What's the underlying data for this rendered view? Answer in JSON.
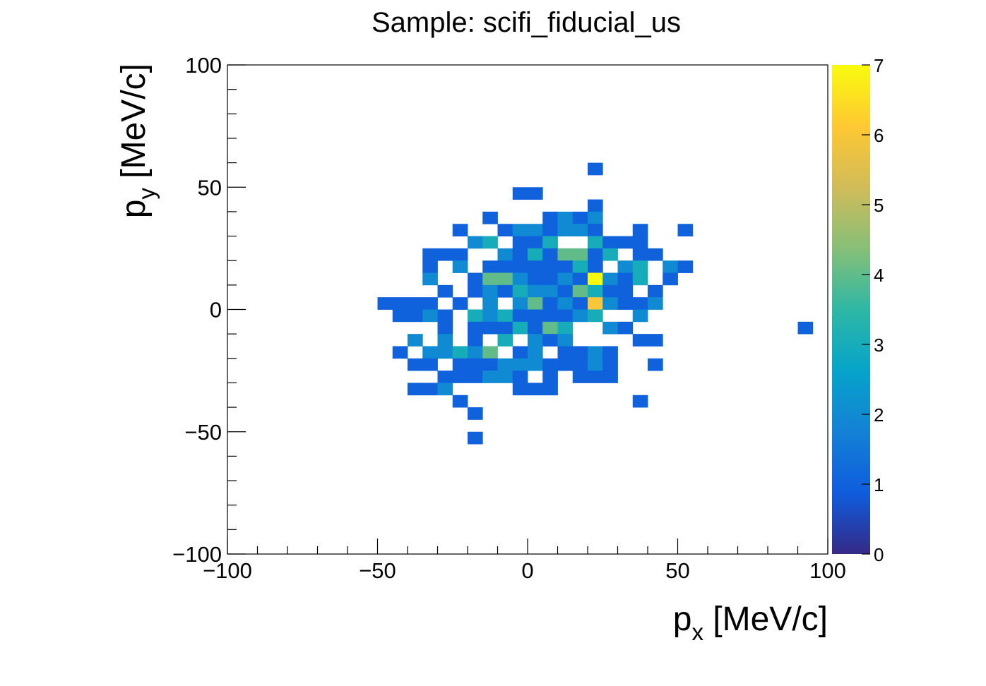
{
  "chart_data": {
    "type": "heatmap",
    "title": "Sample: scifi_fiducial_us",
    "xlabel_main": "p",
    "xlabel_sub": "x",
    "xlabel_unit": " [MeV/c]",
    "ylabel_main": "p",
    "ylabel_sub": "y",
    "ylabel_unit": " [MeV/c]",
    "xlim": [
      -100,
      100
    ],
    "ylim": [
      -100,
      100
    ],
    "bin_width": 5,
    "z_range": [
      0,
      7
    ],
    "x_ticks": [
      {
        "value": -100,
        "label": "−100"
      },
      {
        "value": -50,
        "label": "−50"
      },
      {
        "value": 0,
        "label": "0"
      },
      {
        "value": 50,
        "label": "50"
      },
      {
        "value": 100,
        "label": "100"
      }
    ],
    "y_ticks": [
      {
        "value": -100,
        "label": "−100"
      },
      {
        "value": -50,
        "label": "−50"
      },
      {
        "value": 0,
        "label": "0"
      },
      {
        "value": 50,
        "label": "50"
      },
      {
        "value": 100,
        "label": "100"
      }
    ],
    "z_ticks": [
      "0",
      "1",
      "2",
      "3",
      "4",
      "5",
      "6",
      "7"
    ],
    "colormap": [
      "#352a87",
      "#0f5cdd",
      "#1481d6",
      "#06a4ca",
      "#2eb7a4",
      "#87bf77",
      "#d1bb59",
      "#fec832",
      "#f9fb0e"
    ],
    "bins": [
      {
        "x": 22.5,
        "y": 57.5,
        "z": 1
      },
      {
        "x": -2.5,
        "y": 47.5,
        "z": 1
      },
      {
        "x": 2.5,
        "y": 47.5,
        "z": 1
      },
      {
        "x": 22.5,
        "y": 42.5,
        "z": 1
      },
      {
        "x": -12.5,
        "y": 37.5,
        "z": 1
      },
      {
        "x": 7.5,
        "y": 37.5,
        "z": 1
      },
      {
        "x": 12.5,
        "y": 37.5,
        "z": 2
      },
      {
        "x": 17.5,
        "y": 37.5,
        "z": 1
      },
      {
        "x": 22.5,
        "y": 37.5,
        "z": 2
      },
      {
        "x": -22.5,
        "y": 32.5,
        "z": 1
      },
      {
        "x": -7.5,
        "y": 32.5,
        "z": 1
      },
      {
        "x": -2.5,
        "y": 32.5,
        "z": 2
      },
      {
        "x": 2.5,
        "y": 32.5,
        "z": 2
      },
      {
        "x": 7.5,
        "y": 32.5,
        "z": 1
      },
      {
        "x": 12.5,
        "y": 32.5,
        "z": 2
      },
      {
        "x": 17.5,
        "y": 32.5,
        "z": 2
      },
      {
        "x": 22.5,
        "y": 32.5,
        "z": 1
      },
      {
        "x": 37.5,
        "y": 32.5,
        "z": 1
      },
      {
        "x": 52.5,
        "y": 32.5,
        "z": 1
      },
      {
        "x": -17.5,
        "y": 27.5,
        "z": 2
      },
      {
        "x": -12.5,
        "y": 27.5,
        "z": 3
      },
      {
        "x": -2.5,
        "y": 27.5,
        "z": 1
      },
      {
        "x": 2.5,
        "y": 27.5,
        "z": 1
      },
      {
        "x": 7.5,
        "y": 27.5,
        "z": 3
      },
      {
        "x": 22.5,
        "y": 27.5,
        "z": 3
      },
      {
        "x": 27.5,
        "y": 27.5,
        "z": 1
      },
      {
        "x": 32.5,
        "y": 27.5,
        "z": 1
      },
      {
        "x": 37.5,
        "y": 27.5,
        "z": 1
      },
      {
        "x": -32.5,
        "y": 22.5,
        "z": 1
      },
      {
        "x": -27.5,
        "y": 22.5,
        "z": 1
      },
      {
        "x": -22.5,
        "y": 22.5,
        "z": 1
      },
      {
        "x": -7.5,
        "y": 22.5,
        "z": 2
      },
      {
        "x": -2.5,
        "y": 22.5,
        "z": 1
      },
      {
        "x": 2.5,
        "y": 22.5,
        "z": 3
      },
      {
        "x": 7.5,
        "y": 22.5,
        "z": 1
      },
      {
        "x": 12.5,
        "y": 22.5,
        "z": 4
      },
      {
        "x": 17.5,
        "y": 22.5,
        "z": 4
      },
      {
        "x": 22.5,
        "y": 22.5,
        "z": 1
      },
      {
        "x": 27.5,
        "y": 22.5,
        "z": 3
      },
      {
        "x": 37.5,
        "y": 22.5,
        "z": 1
      },
      {
        "x": 42.5,
        "y": 22.5,
        "z": 1
      },
      {
        "x": -32.5,
        "y": 17.5,
        "z": 1
      },
      {
        "x": -22.5,
        "y": 17.5,
        "z": 2
      },
      {
        "x": -12.5,
        "y": 17.5,
        "z": 1
      },
      {
        "x": -7.5,
        "y": 17.5,
        "z": 1
      },
      {
        "x": -2.5,
        "y": 17.5,
        "z": 1
      },
      {
        "x": 2.5,
        "y": 17.5,
        "z": 1
      },
      {
        "x": 7.5,
        "y": 17.5,
        "z": 1
      },
      {
        "x": 12.5,
        "y": 17.5,
        "z": 1
      },
      {
        "x": 17.5,
        "y": 17.5,
        "z": 3
      },
      {
        "x": 22.5,
        "y": 17.5,
        "z": 1
      },
      {
        "x": 32.5,
        "y": 17.5,
        "z": 2
      },
      {
        "x": 37.5,
        "y": 17.5,
        "z": 3
      },
      {
        "x": 47.5,
        "y": 17.5,
        "z": 2
      },
      {
        "x": 52.5,
        "y": 17.5,
        "z": 1
      },
      {
        "x": -32.5,
        "y": 12.5,
        "z": 2
      },
      {
        "x": -17.5,
        "y": 12.5,
        "z": 1
      },
      {
        "x": -12.5,
        "y": 12.5,
        "z": 4
      },
      {
        "x": -7.5,
        "y": 12.5,
        "z": 4
      },
      {
        "x": -2.5,
        "y": 12.5,
        "z": 2
      },
      {
        "x": 2.5,
        "y": 12.5,
        "z": 1
      },
      {
        "x": 7.5,
        "y": 12.5,
        "z": 1
      },
      {
        "x": 12.5,
        "y": 12.5,
        "z": 2
      },
      {
        "x": 17.5,
        "y": 12.5,
        "z": 1
      },
      {
        "x": 22.5,
        "y": 12.5,
        "z": 7
      },
      {
        "x": 27.5,
        "y": 12.5,
        "z": 2
      },
      {
        "x": 32.5,
        "y": 12.5,
        "z": 1
      },
      {
        "x": 37.5,
        "y": 12.5,
        "z": 3
      },
      {
        "x": 47.5,
        "y": 12.5,
        "z": 1
      },
      {
        "x": -27.5,
        "y": 7.5,
        "z": 1
      },
      {
        "x": -17.5,
        "y": 7.5,
        "z": 1
      },
      {
        "x": -12.5,
        "y": 7.5,
        "z": 2
      },
      {
        "x": -7.5,
        "y": 7.5,
        "z": 1
      },
      {
        "x": -2.5,
        "y": 7.5,
        "z": 3
      },
      {
        "x": 2.5,
        "y": 7.5,
        "z": 2
      },
      {
        "x": 7.5,
        "y": 7.5,
        "z": 2
      },
      {
        "x": 12.5,
        "y": 7.5,
        "z": 1
      },
      {
        "x": 17.5,
        "y": 7.5,
        "z": 4
      },
      {
        "x": 22.5,
        "y": 7.5,
        "z": 3
      },
      {
        "x": 27.5,
        "y": 7.5,
        "z": 1
      },
      {
        "x": 32.5,
        "y": 7.5,
        "z": 1
      },
      {
        "x": 42.5,
        "y": 7.5,
        "z": 1
      },
      {
        "x": -47.5,
        "y": 2.5,
        "z": 1
      },
      {
        "x": -42.5,
        "y": 2.5,
        "z": 1
      },
      {
        "x": -37.5,
        "y": 2.5,
        "z": 1
      },
      {
        "x": -32.5,
        "y": 2.5,
        "z": 1
      },
      {
        "x": -22.5,
        "y": 2.5,
        "z": 1
      },
      {
        "x": -12.5,
        "y": 2.5,
        "z": 2
      },
      {
        "x": -2.5,
        "y": 2.5,
        "z": 2
      },
      {
        "x": 2.5,
        "y": 2.5,
        "z": 4
      },
      {
        "x": 7.5,
        "y": 2.5,
        "z": 1
      },
      {
        "x": 12.5,
        "y": 2.5,
        "z": 2
      },
      {
        "x": 17.5,
        "y": 2.5,
        "z": 1
      },
      {
        "x": 22.5,
        "y": 2.5,
        "z": 6
      },
      {
        "x": 27.5,
        "y": 2.5,
        "z": 2
      },
      {
        "x": 32.5,
        "y": 2.5,
        "z": 1
      },
      {
        "x": 37.5,
        "y": 2.5,
        "z": 1
      },
      {
        "x": 42.5,
        "y": 2.5,
        "z": 2
      },
      {
        "x": -42.5,
        "y": -2.5,
        "z": 1
      },
      {
        "x": -37.5,
        "y": -2.5,
        "z": 1
      },
      {
        "x": -32.5,
        "y": -2.5,
        "z": 2
      },
      {
        "x": -27.5,
        "y": -2.5,
        "z": 1
      },
      {
        "x": -17.5,
        "y": -2.5,
        "z": 3
      },
      {
        "x": -12.5,
        "y": -2.5,
        "z": 2
      },
      {
        "x": -7.5,
        "y": -2.5,
        "z": 3
      },
      {
        "x": -2.5,
        "y": -2.5,
        "z": 1
      },
      {
        "x": 2.5,
        "y": -2.5,
        "z": 1
      },
      {
        "x": 7.5,
        "y": -2.5,
        "z": 1
      },
      {
        "x": 12.5,
        "y": -2.5,
        "z": 1
      },
      {
        "x": 17.5,
        "y": -2.5,
        "z": 2
      },
      {
        "x": 22.5,
        "y": -2.5,
        "z": 3
      },
      {
        "x": 37.5,
        "y": -2.5,
        "z": 2
      },
      {
        "x": -27.5,
        "y": -7.5,
        "z": 1
      },
      {
        "x": -17.5,
        "y": -7.5,
        "z": 1
      },
      {
        "x": -12.5,
        "y": -7.5,
        "z": 1
      },
      {
        "x": -7.5,
        "y": -7.5,
        "z": 1
      },
      {
        "x": -2.5,
        "y": -7.5,
        "z": 3
      },
      {
        "x": 2.5,
        "y": -7.5,
        "z": 1
      },
      {
        "x": 7.5,
        "y": -7.5,
        "z": 4
      },
      {
        "x": 12.5,
        "y": -7.5,
        "z": 3
      },
      {
        "x": 27.5,
        "y": -7.5,
        "z": 2
      },
      {
        "x": 32.5,
        "y": -7.5,
        "z": 1
      },
      {
        "x": 92.5,
        "y": -7.5,
        "z": 1
      },
      {
        "x": -37.5,
        "y": -12.5,
        "z": 2
      },
      {
        "x": -27.5,
        "y": -12.5,
        "z": 2
      },
      {
        "x": -17.5,
        "y": -12.5,
        "z": 1
      },
      {
        "x": -7.5,
        "y": -12.5,
        "z": 3
      },
      {
        "x": 2.5,
        "y": -12.5,
        "z": 2
      },
      {
        "x": 7.5,
        "y": -12.5,
        "z": 1
      },
      {
        "x": 12.5,
        "y": -12.5,
        "z": 2
      },
      {
        "x": 37.5,
        "y": -12.5,
        "z": 1
      },
      {
        "x": 42.5,
        "y": -12.5,
        "z": 1
      },
      {
        "x": -42.5,
        "y": -17.5,
        "z": 1
      },
      {
        "x": -32.5,
        "y": -17.5,
        "z": 2
      },
      {
        "x": -27.5,
        "y": -17.5,
        "z": 2
      },
      {
        "x": -22.5,
        "y": -17.5,
        "z": 3
      },
      {
        "x": -17.5,
        "y": -17.5,
        "z": 2
      },
      {
        "x": -12.5,
        "y": -17.5,
        "z": 4
      },
      {
        "x": -2.5,
        "y": -17.5,
        "z": 1
      },
      {
        "x": 2.5,
        "y": -17.5,
        "z": 2
      },
      {
        "x": 12.5,
        "y": -17.5,
        "z": 1
      },
      {
        "x": 17.5,
        "y": -17.5,
        "z": 1
      },
      {
        "x": 22.5,
        "y": -17.5,
        "z": 2
      },
      {
        "x": 27.5,
        "y": -17.5,
        "z": 1
      },
      {
        "x": -37.5,
        "y": -22.5,
        "z": 1
      },
      {
        "x": -32.5,
        "y": -22.5,
        "z": 1
      },
      {
        "x": -22.5,
        "y": -22.5,
        "z": 1
      },
      {
        "x": -17.5,
        "y": -22.5,
        "z": 1
      },
      {
        "x": -12.5,
        "y": -22.5,
        "z": 1
      },
      {
        "x": -7.5,
        "y": -22.5,
        "z": 2
      },
      {
        "x": -2.5,
        "y": -22.5,
        "z": 2
      },
      {
        "x": 2.5,
        "y": -22.5,
        "z": 2
      },
      {
        "x": 7.5,
        "y": -22.5,
        "z": 1
      },
      {
        "x": 12.5,
        "y": -22.5,
        "z": 1
      },
      {
        "x": 17.5,
        "y": -22.5,
        "z": 1
      },
      {
        "x": 22.5,
        "y": -22.5,
        "z": 2
      },
      {
        "x": 27.5,
        "y": -22.5,
        "z": 1
      },
      {
        "x": 42.5,
        "y": -22.5,
        "z": 1
      },
      {
        "x": -27.5,
        "y": -27.5,
        "z": 1
      },
      {
        "x": -22.5,
        "y": -27.5,
        "z": 1
      },
      {
        "x": -17.5,
        "y": -27.5,
        "z": 1
      },
      {
        "x": -12.5,
        "y": -27.5,
        "z": 2
      },
      {
        "x": -7.5,
        "y": -27.5,
        "z": 2
      },
      {
        "x": -2.5,
        "y": -27.5,
        "z": 1
      },
      {
        "x": 7.5,
        "y": -27.5,
        "z": 1
      },
      {
        "x": 17.5,
        "y": -27.5,
        "z": 1
      },
      {
        "x": 22.5,
        "y": -27.5,
        "z": 1
      },
      {
        "x": 27.5,
        "y": -27.5,
        "z": 1
      },
      {
        "x": -37.5,
        "y": -32.5,
        "z": 1
      },
      {
        "x": -32.5,
        "y": -32.5,
        "z": 1
      },
      {
        "x": -27.5,
        "y": -32.5,
        "z": 2
      },
      {
        "x": -2.5,
        "y": -32.5,
        "z": 1
      },
      {
        "x": 2.5,
        "y": -32.5,
        "z": 1
      },
      {
        "x": 7.5,
        "y": -32.5,
        "z": 1
      },
      {
        "x": -22.5,
        "y": -37.5,
        "z": 1
      },
      {
        "x": 37.5,
        "y": -37.5,
        "z": 1
      },
      {
        "x": -17.5,
        "y": -42.5,
        "z": 1
      },
      {
        "x": -17.5,
        "y": -52.5,
        "z": 1
      }
    ]
  }
}
